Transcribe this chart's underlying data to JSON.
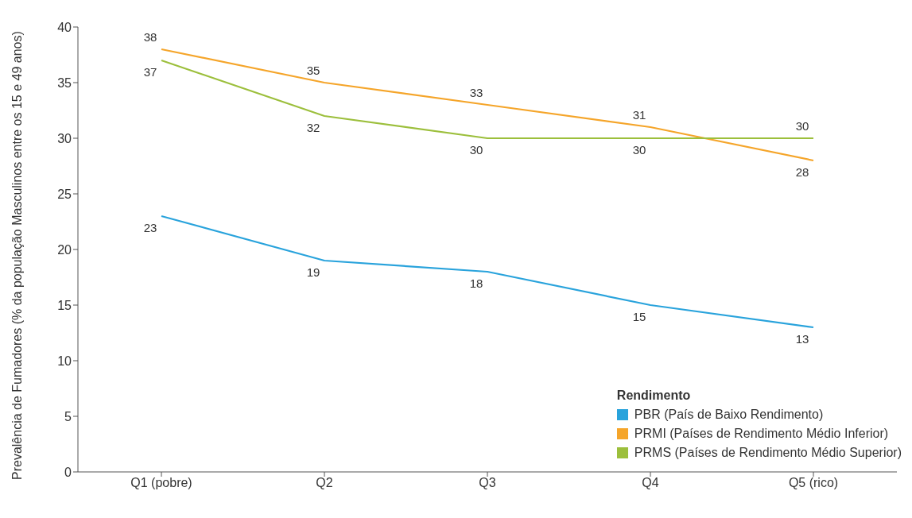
{
  "chart_data": {
    "type": "line",
    "ylabel": "Prevalência de Fumadores (% da população Masculinos entre os 15 e 49 anos)",
    "legend_title": "Rendimento",
    "categories": [
      "Q1 (pobre)",
      "Q2",
      "Q3",
      "Q4",
      "Q5 (rico)"
    ],
    "series": [
      {
        "name": "PBR (País de Baixo Rendimento)",
        "color": "#29a3dc",
        "values": [
          23,
          19,
          18,
          15,
          13
        ]
      },
      {
        "name": "PRMI (Países de Rendimento Médio Inferior)",
        "color": "#f5a52a",
        "values": [
          38,
          35,
          33,
          31,
          28
        ]
      },
      {
        "name": "PRMS (Países de Rendimento Médio Superior)",
        "color": "#9cbf3c",
        "values": [
          37,
          32,
          30,
          30,
          30
        ]
      }
    ],
    "ylim": [
      0,
      40
    ],
    "yticks": [
      0,
      5,
      10,
      15,
      20,
      25,
      30,
      35,
      40
    ],
    "grid": false,
    "legend": "bottom right",
    "data_labels": true,
    "marker": "none",
    "line_style": "solid"
  }
}
